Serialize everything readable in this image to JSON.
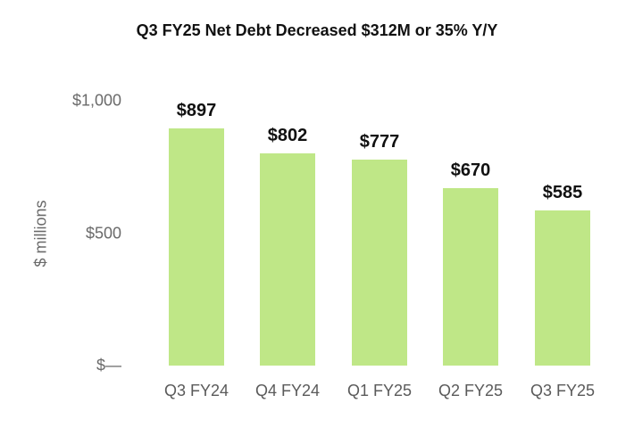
{
  "chart_data": {
    "type": "bar",
    "title": "Q3 FY25 Net Debt Decreased $312M or 35% Y/Y",
    "xlabel": "",
    "ylabel": "$ millions",
    "categories": [
      "Q3 FY24",
      "Q4 FY24",
      "Q1 FY25",
      "Q2 FY25",
      "Q3 FY25"
    ],
    "values": [
      897,
      802,
      777,
      670,
      585
    ],
    "value_labels": [
      "$897",
      "$802",
      "$777",
      "$670",
      "$585"
    ],
    "ylim": [
      0,
      1000
    ],
    "yticks": [
      0,
      500,
      1000
    ],
    "ytick_labels": [
      "$—",
      "$500",
      "$1,000"
    ],
    "grid": false,
    "legend": null,
    "bar_color": "#bfe787"
  }
}
